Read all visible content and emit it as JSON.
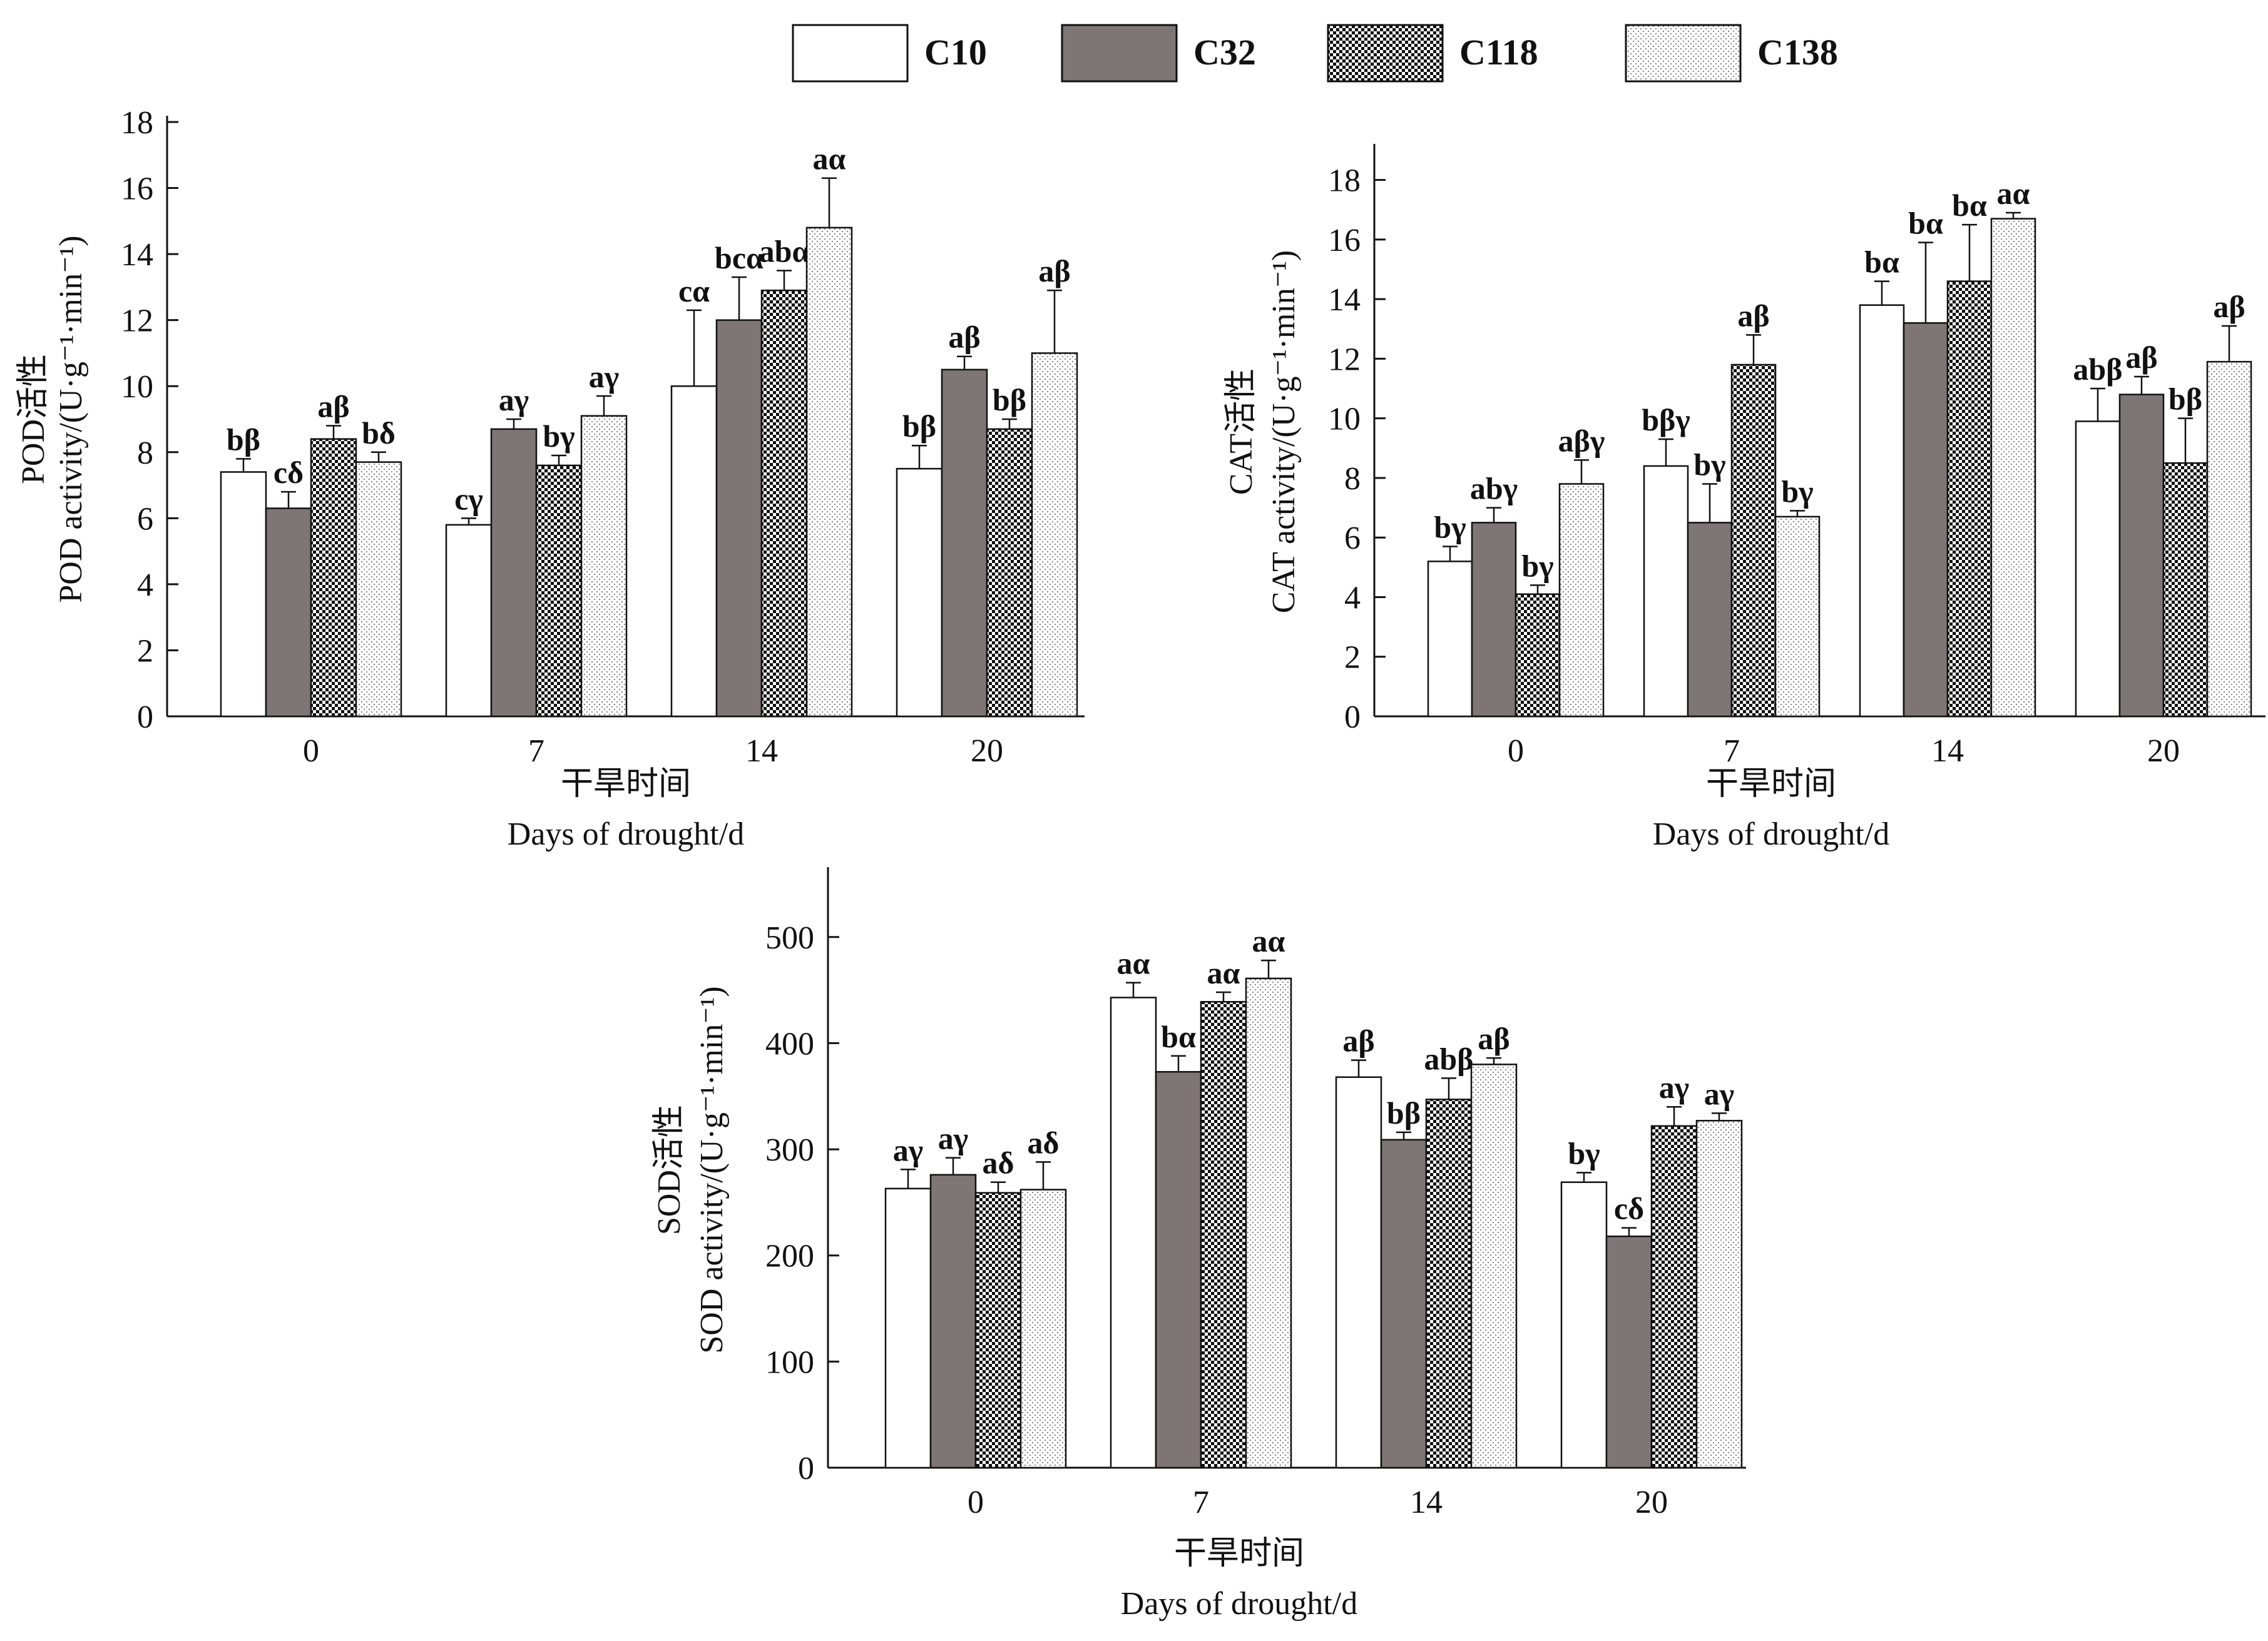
{
  "legend": [
    "C10",
    "C32",
    "C118",
    "C138"
  ],
  "chart_data": [
    {
      "type": "bar",
      "categories": [
        "0",
        "7",
        "14",
        "20"
      ],
      "ylabel": "POD活性\nPOD activity/(U·g⁻¹·min⁻¹)",
      "xlabel": "干旱时间\nDays of drought/d",
      "ylim": [
        0,
        18
      ],
      "yticks": [
        "0",
        "2",
        "4",
        "6",
        "8",
        "10",
        "12",
        "14",
        "16",
        "18"
      ],
      "grid": false,
      "legend_position": "top",
      "series": [
        {
          "name": "C10",
          "values": [
            7.4,
            5.8,
            10.0,
            7.5
          ],
          "errors": [
            0.4,
            0.2,
            2.3,
            0.7
          ],
          "labels": [
            "bβ",
            "cγ",
            "cα",
            "bβ"
          ]
        },
        {
          "name": "C32",
          "values": [
            6.3,
            8.7,
            12.0,
            10.5
          ],
          "errors": [
            0.5,
            0.3,
            1.3,
            0.4
          ],
          "labels": [
            "cδ",
            "aγ",
            "bcα",
            "aβ"
          ]
        },
        {
          "name": "C118",
          "values": [
            8.4,
            7.6,
            12.9,
            8.7
          ],
          "errors": [
            0.4,
            0.3,
            0.6,
            0.3
          ],
          "labels": [
            "aβ",
            "bγ",
            "abα",
            "bβ"
          ]
        },
        {
          "name": "C138",
          "values": [
            7.7,
            9.1,
            14.8,
            11.0
          ],
          "errors": [
            0.3,
            0.6,
            1.5,
            1.9
          ],
          "labels": [
            "bδ",
            "aγ",
            "aα",
            "aβ"
          ]
        }
      ]
    },
    {
      "type": "bar",
      "categories": [
        "0",
        "7",
        "14",
        "20"
      ],
      "ylabel": "CAT活性\nCAT activity/(U·g⁻¹·min⁻¹)",
      "xlabel": "干旱时间\nDays of drought/d",
      "ylim": [
        0,
        19
      ],
      "yticks": [
        "0",
        "2",
        "4",
        "6",
        "8",
        "10",
        "12",
        "14",
        "16",
        "18"
      ],
      "grid": false,
      "series": [
        {
          "name": "C10",
          "values": [
            5.2,
            8.4,
            13.8,
            9.9
          ],
          "errors": [
            0.5,
            0.9,
            0.8,
            1.1
          ],
          "labels": [
            "bγ",
            "bβγ",
            "bα",
            "abβ"
          ]
        },
        {
          "name": "C32",
          "values": [
            6.5,
            6.5,
            13.2,
            10.8
          ],
          "errors": [
            0.5,
            1.3,
            2.7,
            0.6
          ],
          "labels": [
            "abγ",
            "bγ",
            "bα",
            "aβ"
          ]
        },
        {
          "name": "C118",
          "values": [
            4.1,
            11.8,
            14.6,
            8.5
          ],
          "errors": [
            0.3,
            1.0,
            1.9,
            1.5
          ],
          "labels": [
            "bγ",
            "aβ",
            "bα",
            "bβ"
          ]
        },
        {
          "name": "C138",
          "values": [
            7.8,
            6.7,
            16.7,
            11.9
          ],
          "errors": [
            0.8,
            0.2,
            0.2,
            1.2
          ],
          "labels": [
            "aβγ",
            "bγ",
            "aα",
            "aβ"
          ]
        }
      ]
    },
    {
      "type": "bar",
      "categories": [
        "0",
        "7",
        "14",
        "20"
      ],
      "ylabel": "SOD活性\nSOD activity/(U·g⁻¹·min⁻¹)",
      "xlabel": "干旱时间\nDays of drought/d",
      "ylim": [
        0,
        560
      ],
      "yticks": [
        "0",
        "100",
        "200",
        "300",
        "400",
        "500"
      ],
      "grid": false,
      "series": [
        {
          "name": "C10",
          "values": [
            263,
            443,
            368,
            269
          ],
          "errors": [
            18,
            14,
            16,
            9
          ],
          "labels": [
            "aγ",
            "aα",
            "aβ",
            "bγ"
          ]
        },
        {
          "name": "C32",
          "values": [
            276,
            373,
            309,
            218
          ],
          "errors": [
            16,
            15,
            7,
            8
          ],
          "labels": [
            "aγ",
            "bα",
            "bβ",
            "cδ"
          ]
        },
        {
          "name": "C118",
          "values": [
            259,
            439,
            347,
            322
          ],
          "errors": [
            10,
            9,
            20,
            18
          ],
          "labels": [
            "aδ",
            "aα",
            "abβ",
            "aγ"
          ]
        },
        {
          "name": "C138",
          "values": [
            262,
            461,
            380,
            327
          ],
          "errors": [
            26,
            17,
            6,
            7
          ],
          "labels": [
            "aδ",
            "aα",
            "aβ",
            "aγ"
          ]
        }
      ]
    }
  ]
}
